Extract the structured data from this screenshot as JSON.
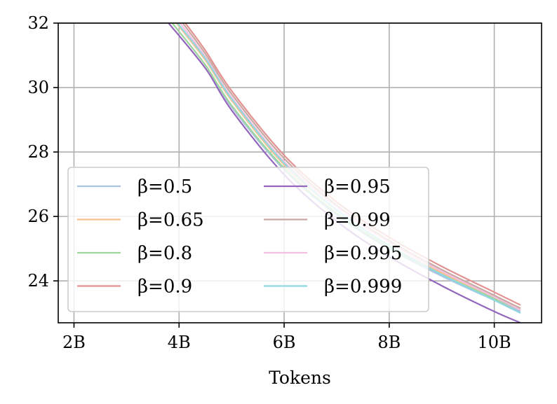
{
  "chart_data": {
    "type": "line",
    "xlabel": "Tokens",
    "ylabel": "",
    "title": "",
    "xlim": [
      1.7,
      10.9
    ],
    "ylim": [
      22.7,
      32
    ],
    "xticks": [
      2,
      4,
      6,
      8,
      10
    ],
    "xtick_labels": [
      "2B",
      "4B",
      "6B",
      "8B",
      "10B"
    ],
    "yticks": [
      24,
      26,
      28,
      30,
      32
    ],
    "ytick_labels": [
      "24",
      "26",
      "28",
      "30",
      "32"
    ],
    "grid": true,
    "legend_placement": "lower-left",
    "legend_columns": 2,
    "series": [
      {
        "name": "β=0.5",
        "color": "#a9c3e2",
        "x": [
          3.87,
          4.5,
          5.0,
          6.0,
          7.0,
          8.0,
          9.0,
          10.0,
          10.5
        ],
        "y": [
          32.0,
          30.7,
          29.4,
          27.45,
          26.05,
          25.0,
          24.15,
          23.4,
          23.05
        ]
      },
      {
        "name": "β=0.65",
        "color": "#fdc08b",
        "x": [
          3.95,
          4.5,
          5.0,
          6.0,
          7.0,
          8.0,
          9.0,
          10.0,
          10.5
        ],
        "y": [
          32.0,
          30.85,
          29.6,
          27.6,
          26.2,
          25.1,
          24.25,
          23.5,
          23.15
        ]
      },
      {
        "name": "β=0.8",
        "color": "#9fd69b",
        "x": [
          3.87,
          4.5,
          5.0,
          6.0,
          7.0,
          8.0,
          9.0,
          10.0,
          10.5
        ],
        "y": [
          32.0,
          30.7,
          29.45,
          27.5,
          26.1,
          25.05,
          24.2,
          23.45,
          23.1
        ]
      },
      {
        "name": "β=0.9",
        "color": "#e39292",
        "x": [
          4.12,
          4.5,
          5.0,
          6.0,
          7.0,
          8.0,
          9.0,
          10.0,
          10.5
        ],
        "y": [
          32.0,
          31.15,
          29.9,
          27.9,
          26.45,
          25.35,
          24.45,
          23.65,
          23.25
        ]
      },
      {
        "name": "β=0.95",
        "color": "#9467bd",
        "x": [
          3.8,
          4.5,
          5.0,
          6.0,
          7.0,
          8.0,
          9.0,
          10.0,
          10.5
        ],
        "y": [
          32.0,
          30.6,
          29.3,
          27.3,
          25.85,
          24.75,
          23.85,
          23.05,
          22.7
        ]
      },
      {
        "name": "β=0.99",
        "color": "#c9a8a2",
        "x": [
          4.07,
          4.5,
          5.0,
          6.0,
          7.0,
          8.0,
          9.0,
          10.0,
          10.5
        ],
        "y": [
          32.0,
          31.05,
          29.8,
          27.8,
          26.35,
          25.25,
          24.35,
          23.55,
          23.15
        ]
      },
      {
        "name": "β=0.995",
        "color": "#f2bfe0",
        "x": [
          4.02,
          4.5,
          5.0,
          6.0,
          7.0,
          8.0,
          9.0,
          10.0,
          10.5
        ],
        "y": [
          32.0,
          30.95,
          29.7,
          27.7,
          26.3,
          25.2,
          24.3,
          23.5,
          23.1
        ]
      },
      {
        "name": "β=0.999",
        "color": "#8ed8e0",
        "x": [
          3.97,
          4.5,
          5.0,
          6.0,
          7.0,
          8.0,
          9.0,
          10.0,
          10.5
        ],
        "y": [
          32.0,
          30.9,
          29.65,
          27.65,
          26.2,
          25.1,
          24.2,
          23.4,
          23.0
        ]
      }
    ]
  }
}
